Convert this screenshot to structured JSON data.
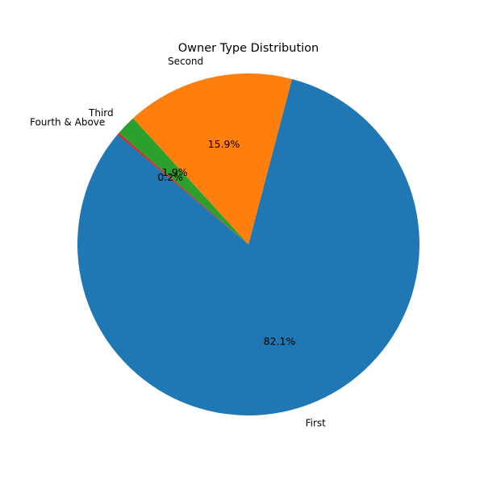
{
  "chart_data": {
    "type": "pie",
    "title": "Owner Type Distribution",
    "start_angle_deg": 140,
    "direction": "counterclockwise",
    "slices": [
      {
        "label": "First",
        "value": 82.1,
        "pct_label": "82.1%",
        "color": "#1f77b4"
      },
      {
        "label": "Second",
        "value": 15.9,
        "pct_label": "15.9%",
        "color": "#ff7f0e"
      },
      {
        "label": "Third",
        "value": 1.9,
        "pct_label": "1.9%",
        "color": "#2ca02c"
      },
      {
        "label": "Fourth & Above",
        "value": 0.2,
        "pct_label": "0.2%",
        "color": "#d62728"
      }
    ]
  }
}
